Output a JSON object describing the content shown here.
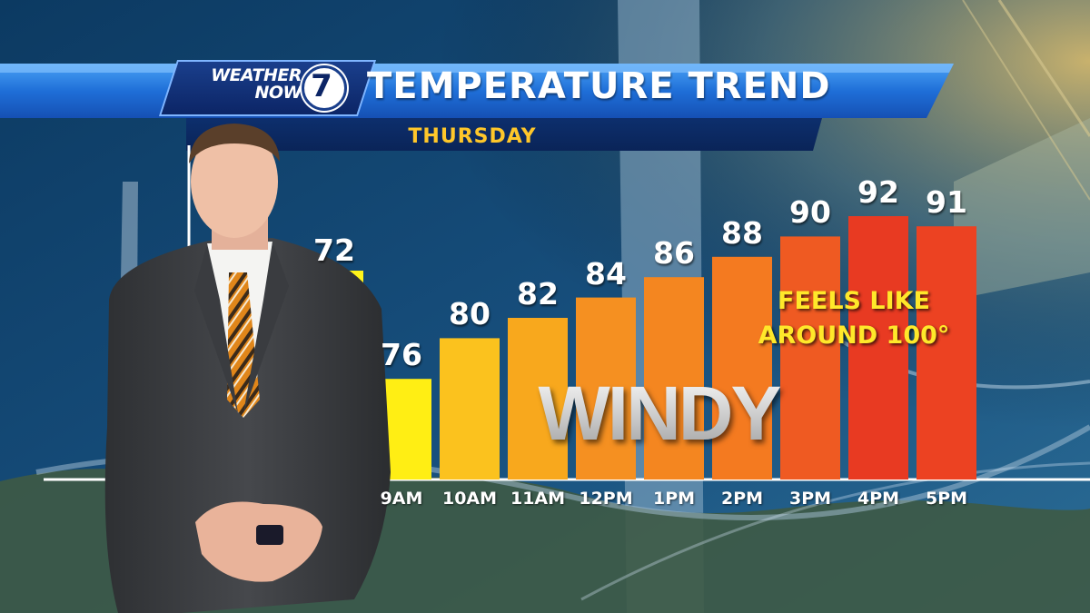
{
  "header": {
    "logo_line1": "WEATHER",
    "logo_line2": "NOW",
    "logo_number": "7",
    "title": "TEMPERATURE TREND",
    "subtitle": "THURSDAY"
  },
  "chart_data": {
    "type": "bar",
    "categories": [
      "9AM",
      "10AM",
      "11AM",
      "12PM",
      "1PM",
      "2PM",
      "3PM",
      "4PM",
      "5PM"
    ],
    "values": [
      76,
      80,
      82,
      84,
      86,
      88,
      90,
      92,
      91
    ],
    "partially_hidden_values": [
      72
    ],
    "colors": [
      "#ffee14",
      "#fbc21e",
      "#f8a81d",
      "#f59021",
      "#f48620",
      "#f47a20",
      "#ef5a22",
      "#e83a22",
      "#ec4222"
    ],
    "hidden_bar_color": "#fff41a",
    "title": "TEMPERATURE TREND",
    "subtitle": "THURSDAY",
    "grid": false,
    "legend": "none"
  },
  "annotations": {
    "feels_line1": "FEELS LIKE",
    "feels_line2": "AROUND 100°",
    "windy": "WINDY"
  },
  "colors": {
    "banner_blue": "#1f6fd8",
    "subtitle_gold": "#ffc72a",
    "feels_yellow": "#ffe82a",
    "suit": "#3b3d40",
    "tie_orange": "#e0861a"
  },
  "icons": [
    "weather-now-7-logo"
  ]
}
